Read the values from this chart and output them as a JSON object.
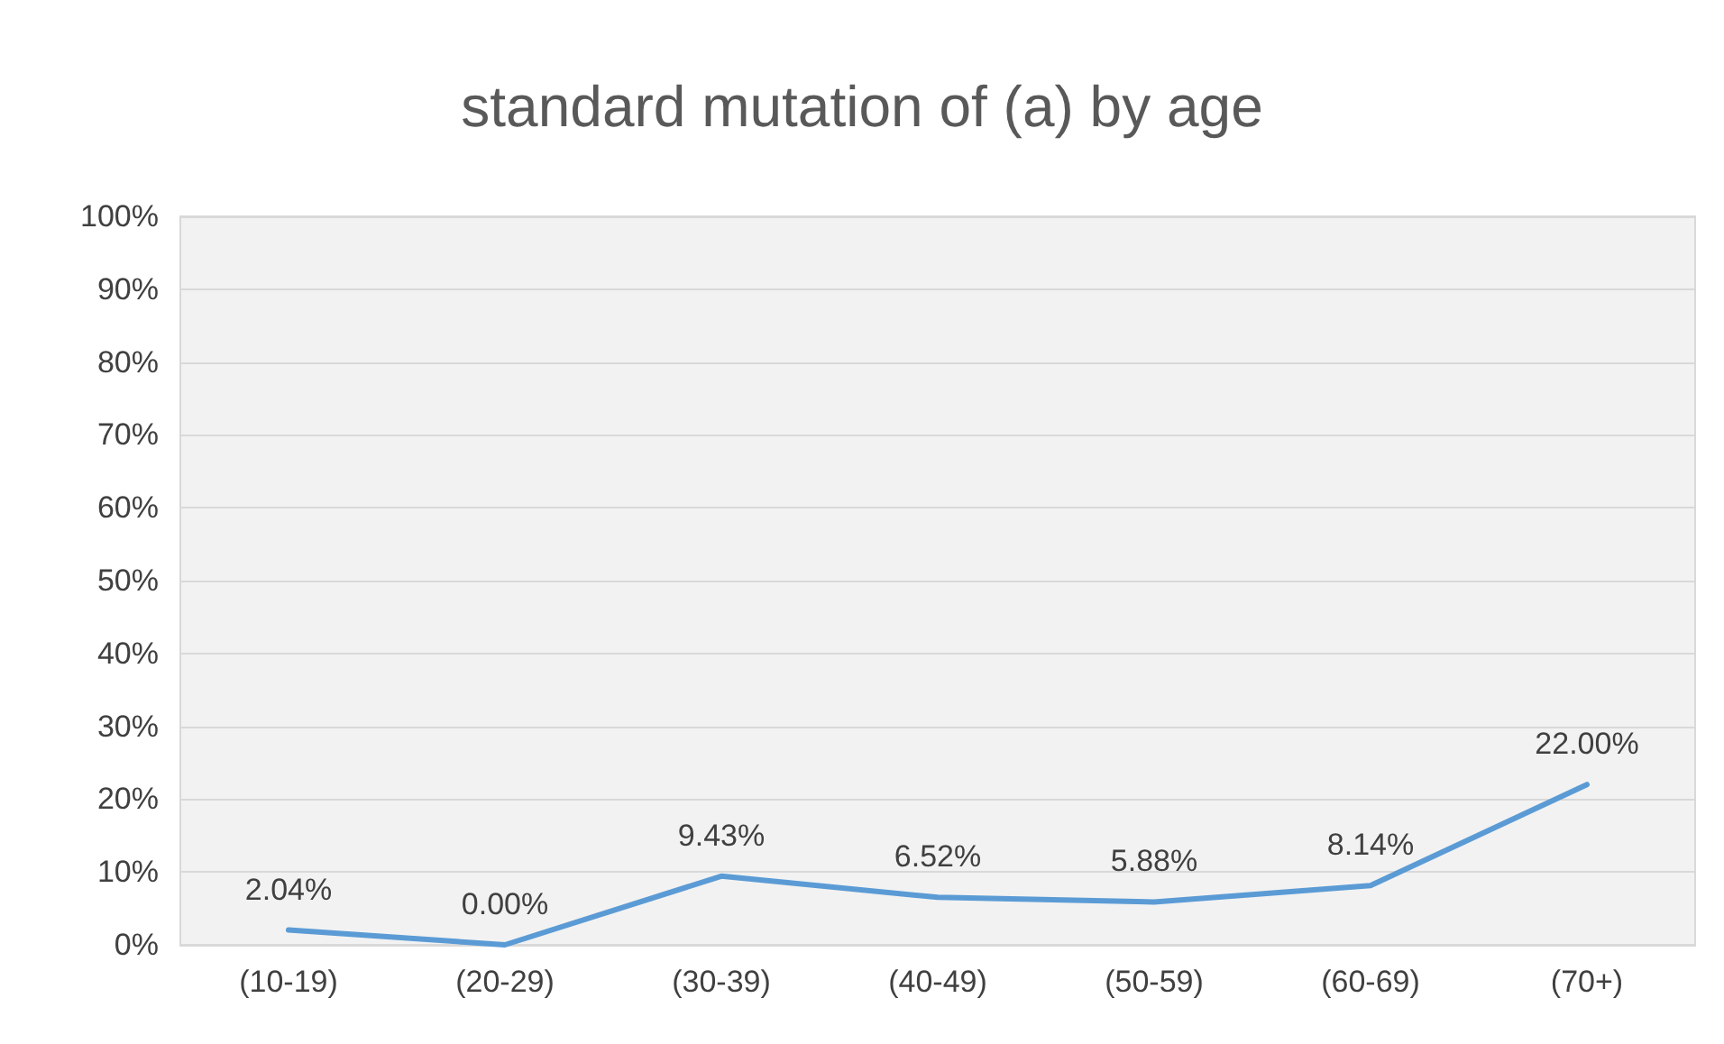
{
  "chart_data": {
    "type": "line",
    "title": "standard mutation of (a) by age",
    "categories": [
      "(10-19)",
      "(20-29)",
      "(30-39)",
      "(40-49)",
      "(50-59)",
      "(60-69)",
      "(70+)"
    ],
    "series": [
      {
        "color": "#5b9bd5",
        "values": [
          2.04,
          0,
          9.43,
          6.52,
          5.88,
          8.14,
          22.0
        ],
        "value_labels": [
          "2.04%",
          "0.00%",
          "9.43%",
          "6.52%",
          "5.88%",
          "8.14%",
          "22.00%"
        ]
      }
    ],
    "ylim": [
      0,
      100
    ],
    "yticks": [
      {
        "value": 0,
        "label": "0%"
      },
      {
        "value": 10,
        "label": "10%"
      },
      {
        "value": 20,
        "label": "20%"
      },
      {
        "value": 30,
        "label": "30%"
      },
      {
        "value": 40,
        "label": "40%"
      },
      {
        "value": 50,
        "label": "50%"
      },
      {
        "value": 60,
        "label": "60%"
      },
      {
        "value": 70,
        "label": "70%"
      },
      {
        "value": 80,
        "label": "80%"
      },
      {
        "value": 90,
        "label": "90%"
      },
      {
        "value": 100,
        "label": "100%"
      }
    ],
    "grid": "y",
    "marker": "none",
    "line_style": "solid"
  }
}
